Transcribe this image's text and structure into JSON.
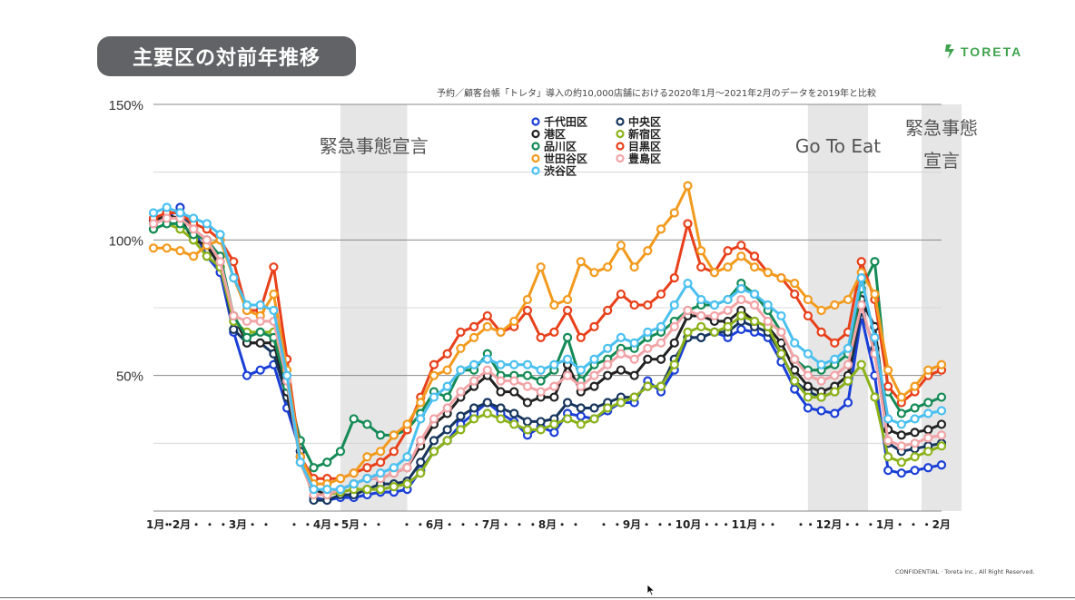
{
  "slide": {
    "title": "主要区の対前年推移",
    "logo_text": "TORETA",
    "subtitle": "予約／顧客台帳「トレタ」導入の約10,000店舗における2020年1月〜2021年2月のデータを2019年と比較",
    "confidential": "CONFIDENTIAL · Toreta Inc., All Right Reserved."
  },
  "chart_data": {
    "type": "line",
    "ylim": [
      0,
      150
    ],
    "y_ticks": [
      {
        "value": 150,
        "label": "150%"
      },
      {
        "value": 100,
        "label": "100%"
      },
      {
        "value": 50,
        "label": "50%"
      }
    ],
    "y_gridlines": [
      150,
      125,
      100,
      75,
      50,
      25,
      0
    ],
    "x_tick_labels": [
      "1月・",
      "・2月・",
      "・",
      "・3月・",
      "・",
      "・",
      "・4月・",
      "・5月・",
      "・",
      "・",
      "・6月・",
      "・",
      "・7月・",
      "・",
      "・8月・",
      "・",
      "・",
      "・9月・",
      "・",
      "・10月・",
      "・",
      "・11月・",
      "・",
      "・",
      "・12月・",
      "・",
      "・1月・",
      "・",
      "・2月"
    ],
    "shaded_periods": [
      {
        "start": 14,
        "end": 19,
        "label_lines": [
          "緊急事態宣言"
        ]
      },
      {
        "start": 49,
        "end": 53.5,
        "label_lines": [
          "Go To Eat"
        ]
      },
      {
        "start": 57.5,
        "end": 60.5,
        "label_lines": [
          "緊急事態",
          "宣言"
        ]
      }
    ],
    "legend_columns": 2,
    "legend_position": "top-center",
    "series": [
      {
        "name": "千代田区",
        "color": "#1a3fd6",
        "values": [
          106,
          108,
          112,
          104,
          94,
          88,
          66,
          50,
          52,
          54,
          38,
          22,
          5,
          4,
          5,
          5,
          6,
          7,
          7,
          8,
          15,
          22,
          26,
          32,
          36,
          40,
          36,
          33,
          28,
          31,
          29,
          36,
          35,
          34,
          37,
          40,
          40,
          48,
          44,
          52,
          64,
          64,
          66,
          64,
          67,
          66,
          64,
          55,
          45,
          38,
          37,
          36,
          40,
          72,
          50,
          15,
          14,
          15,
          16,
          17
        ]
      },
      {
        "name": "中央区",
        "color": "#17365d",
        "values": [
          107,
          110,
          110,
          104,
          100,
          92,
          67,
          62,
          62,
          58,
          42,
          22,
          4,
          4,
          6,
          6,
          8,
          10,
          10,
          11,
          18,
          26,
          30,
          35,
          38,
          40,
          38,
          36,
          33,
          33,
          34,
          40,
          38,
          38,
          40,
          42,
          42,
          46,
          46,
          56,
          64,
          64,
          66,
          66,
          70,
          68,
          66,
          58,
          48,
          44,
          42,
          44,
          48,
          74,
          60,
          25,
          22,
          23,
          24,
          25
        ]
      },
      {
        "name": "港区",
        "color": "#222222",
        "values": [
          107,
          109,
          108,
          100,
          98,
          90,
          72,
          62,
          62,
          62,
          44,
          20,
          8,
          6,
          8,
          10,
          12,
          12,
          14,
          16,
          24,
          32,
          36,
          42,
          46,
          50,
          44,
          44,
          40,
          42,
          42,
          54,
          44,
          46,
          50,
          52,
          50,
          56,
          56,
          62,
          72,
          72,
          70,
          70,
          74,
          70,
          68,
          62,
          52,
          46,
          44,
          46,
          50,
          78,
          68,
          30,
          28,
          29,
          30,
          32
        ]
      },
      {
        "name": "新宿区",
        "color": "#8cb21a",
        "values": [
          104,
          106,
          104,
          100,
          94,
          90,
          70,
          66,
          66,
          66,
          48,
          18,
          6,
          6,
          7,
          8,
          8,
          8,
          9,
          10,
          14,
          22,
          26,
          30,
          34,
          36,
          34,
          32,
          30,
          30,
          32,
          34,
          32,
          34,
          38,
          40,
          42,
          46,
          46,
          54,
          66,
          68,
          66,
          68,
          72,
          70,
          68,
          58,
          48,
          42,
          42,
          44,
          48,
          54,
          42,
          20,
          18,
          20,
          22,
          24
        ]
      },
      {
        "name": "品川区",
        "color": "#148a56",
        "values": [
          104,
          106,
          106,
          102,
          100,
          94,
          72,
          64,
          66,
          64,
          46,
          26,
          16,
          18,
          22,
          34,
          32,
          28,
          28,
          30,
          36,
          44,
          42,
          52,
          52,
          58,
          50,
          50,
          50,
          48,
          52,
          64,
          48,
          54,
          56,
          60,
          60,
          64,
          66,
          70,
          74,
          76,
          76,
          78,
          84,
          80,
          74,
          66,
          56,
          52,
          52,
          54,
          58,
          82,
          92,
          44,
          36,
          38,
          40,
          42
        ]
      },
      {
        "name": "目黒区",
        "color": "#e8401a",
        "values": [
          108,
          110,
          110,
          106,
          104,
          100,
          92,
          74,
          74,
          90,
          56,
          20,
          12,
          12,
          12,
          14,
          16,
          18,
          22,
          30,
          42,
          54,
          58,
          66,
          68,
          72,
          66,
          68,
          74,
          64,
          66,
          74,
          64,
          68,
          74,
          80,
          76,
          76,
          80,
          86,
          106,
          90,
          88,
          96,
          98,
          94,
          88,
          86,
          80,
          72,
          66,
          62,
          66,
          92,
          78,
          46,
          40,
          44,
          50,
          52
        ]
      },
      {
        "name": "世田谷区",
        "color": "#f29a1d",
        "values": [
          97,
          97,
          96,
          94,
          98,
          100,
          86,
          74,
          72,
          80,
          52,
          20,
          10,
          10,
          12,
          14,
          20,
          22,
          28,
          32,
          40,
          50,
          52,
          60,
          64,
          68,
          66,
          70,
          78,
          90,
          76,
          78,
          92,
          88,
          90,
          98,
          90,
          96,
          104,
          110,
          120,
          96,
          88,
          90,
          94,
          90,
          88,
          86,
          84,
          78,
          74,
          76,
          78,
          88,
          80,
          52,
          42,
          46,
          52,
          54
        ]
      },
      {
        "name": "豊島区",
        "color": "#f2a3a6",
        "values": [
          106,
          108,
          108,
          104,
          100,
          92,
          72,
          70,
          70,
          70,
          48,
          18,
          6,
          6,
          8,
          10,
          12,
          12,
          14,
          16,
          26,
          34,
          38,
          44,
          48,
          52,
          48,
          48,
          46,
          44,
          46,
          50,
          46,
          50,
          54,
          58,
          56,
          60,
          62,
          68,
          74,
          72,
          72,
          74,
          78,
          76,
          70,
          66,
          56,
          50,
          48,
          50,
          54,
          76,
          58,
          26,
          24,
          25,
          27,
          28
        ]
      },
      {
        "name": "渋谷区",
        "color": "#4bc0f0",
        "values": [
          110,
          112,
          110,
          108,
          106,
          102,
          86,
          76,
          76,
          74,
          50,
          18,
          8,
          8,
          8,
          10,
          12,
          14,
          16,
          20,
          34,
          42,
          46,
          52,
          54,
          56,
          54,
          54,
          54,
          52,
          54,
          56,
          52,
          56,
          60,
          64,
          62,
          66,
          68,
          76,
          84,
          78,
          76,
          78,
          82,
          80,
          76,
          72,
          62,
          58,
          54,
          56,
          60,
          86,
          64,
          34,
          32,
          34,
          36,
          37
        ]
      }
    ]
  }
}
